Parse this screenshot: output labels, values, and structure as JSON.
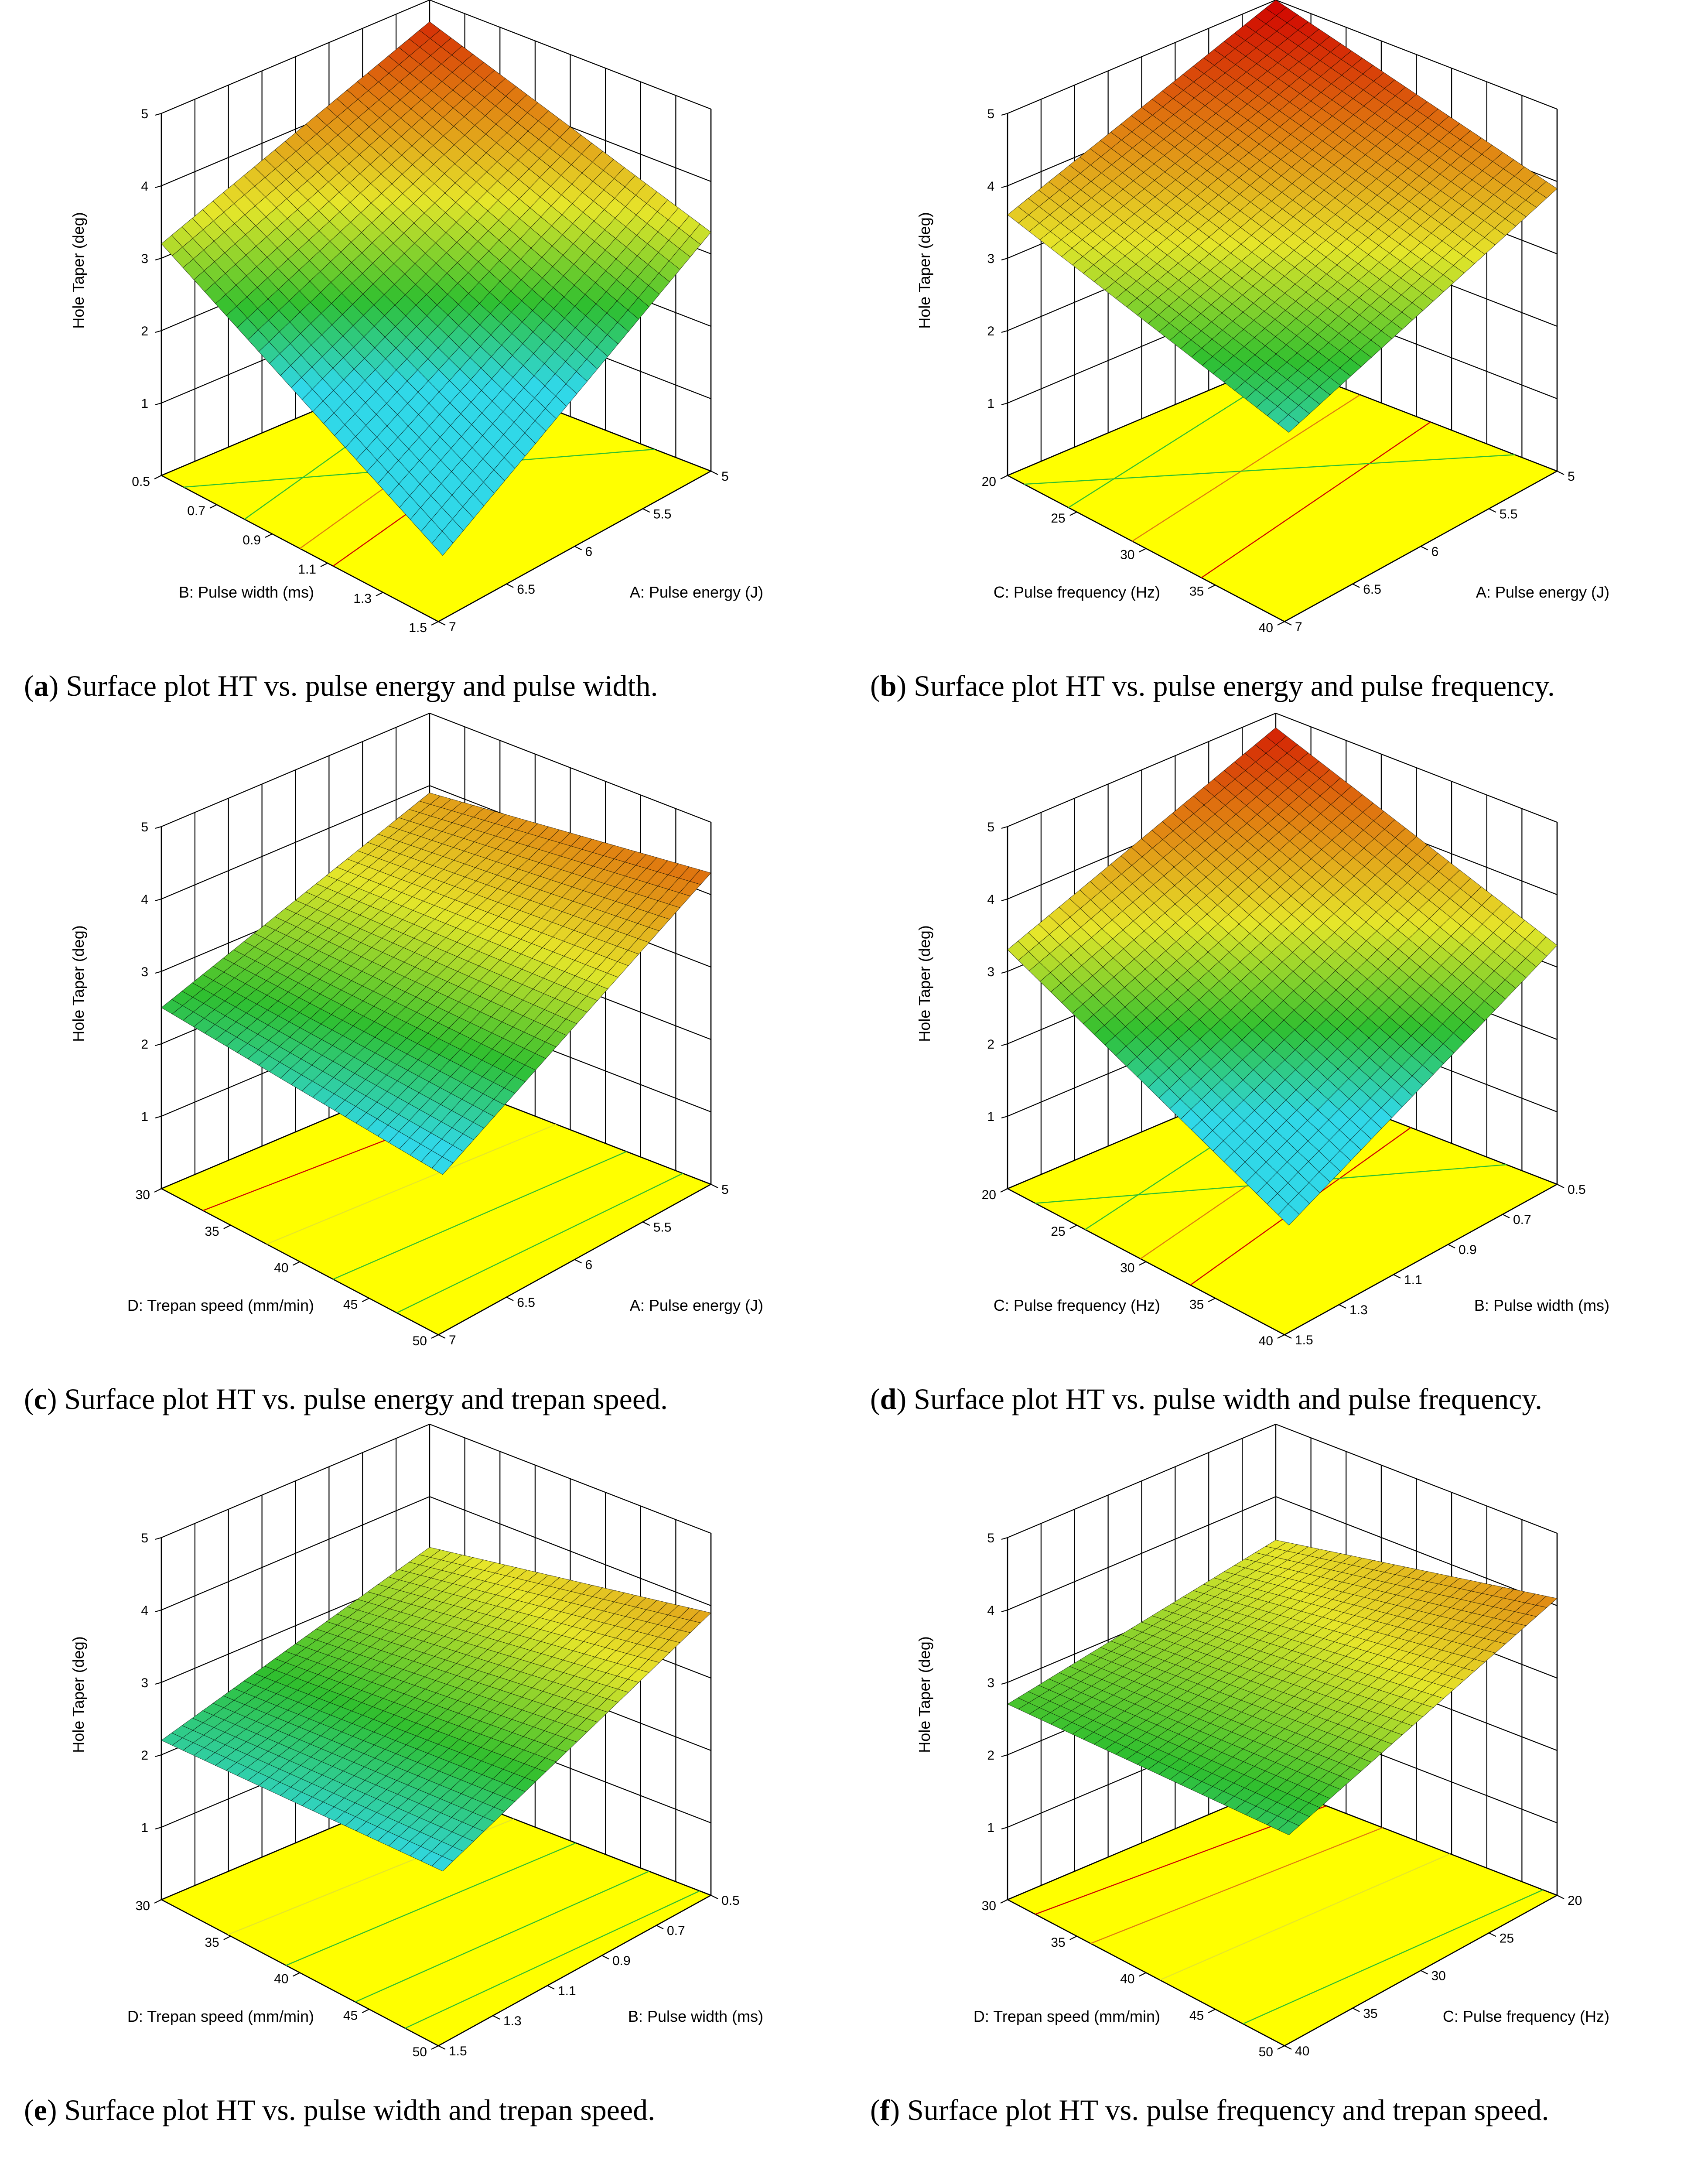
{
  "figure": {
    "panels_count": 6,
    "colors": {
      "base_plane": "#ffff00",
      "base_edge": "#000000",
      "grid": "#000000",
      "surface_low": "#30d8e8",
      "surface_mid": "#2fbf2f",
      "surface_high_a": "#e6e62a",
      "surface_high_b": "#e07a10",
      "surface_max": "#d00000",
      "mesh": "#000000"
    }
  },
  "chart_data": [
    {
      "id": "a",
      "type": "surface",
      "caption": {
        "letter": "a",
        "text": ") Surface plot HT vs. pulse energy and pulse width."
      },
      "zlabel": "Hole Taper (deg)",
      "zticks": [
        "5",
        "4",
        "3",
        "2",
        "1"
      ],
      "zlim": [
        0,
        5
      ],
      "xlabel": "B: Pulse width (ms)",
      "xticks": [
        "0.5",
        "0.7",
        "0.9",
        "1.1",
        "1.3",
        "1.5"
      ],
      "ylabel": "A: Pulse energy (J)",
      "yticks": [
        "5",
        "5.5",
        "6",
        "6.5",
        "7"
      ],
      "corners": {
        "top": 4.7,
        "left": 3.2,
        "right": 3.3,
        "bottom": 0.4
      },
      "contours": [
        {
          "a": 0.62,
          "b": 0.44,
          "color": "#d00000"
        },
        {
          "a": 0.5,
          "b": 0.3,
          "color": "#e07a10"
        },
        {
          "a": 0.3,
          "b": 0.08,
          "color": "#2fbf2f"
        },
        {
          "a": 0.08,
          "b": 0.8,
          "color": "#2fbf2f"
        }
      ]
    },
    {
      "id": "b",
      "type": "surface",
      "caption": {
        "letter": "b",
        "text": ") Surface plot HT vs. pulse energy and pulse frequency."
      },
      "zlabel": "Hole Taper (deg)",
      "zticks": [
        "5",
        "4",
        "3",
        "2",
        "1"
      ],
      "zlim": [
        0,
        5
      ],
      "xlabel": "C: Pulse frequency (Hz)",
      "xticks": [
        "20",
        "25",
        "30",
        "35",
        "40"
      ],
      "ylabel": "A: Pulse energy (J)",
      "yticks": [
        "5",
        "5.5",
        "6",
        "6.5",
        "7"
      ],
      "corners": {
        "top": 5.0,
        "left": 3.6,
        "right": 3.9,
        "bottom": 2.1
      },
      "contours": [
        {
          "a": 0.7,
          "b": 0.55,
          "color": "#d00000"
        },
        {
          "a": 0.45,
          "b": 0.3,
          "color": "#e07a10"
        },
        {
          "a": 0.22,
          "b": 0.05,
          "color": "#2fbf2f"
        },
        {
          "a": 0.06,
          "b": 0.85,
          "color": "#2fbf2f"
        }
      ]
    },
    {
      "id": "c",
      "type": "surface",
      "caption": {
        "letter": "c",
        "text": ") Surface plot HT vs. pulse energy and trepan speed."
      },
      "zlabel": "Hole Taper (deg)",
      "zticks": [
        "5",
        "4",
        "3",
        "2",
        "1"
      ],
      "zlim": [
        0,
        5
      ],
      "xlabel": "D: Trepan speed (mm/min)",
      "xticks": [
        "30",
        "35",
        "40",
        "45",
        "50"
      ],
      "ylabel": "A: Pulse energy (J)",
      "yticks": [
        "5",
        "5.5",
        "6",
        "6.5",
        "7"
      ],
      "corners": {
        "top": 3.9,
        "left": 2.5,
        "right": 4.3,
        "bottom": 1.7
      },
      "contours": [
        {
          "a": 0.85,
          "b": 0.9,
          "color": "#2fbf2f"
        },
        {
          "a": 0.62,
          "b": 0.7,
          "color": "#2fbf2f"
        },
        {
          "a": 0.38,
          "b": 0.45,
          "color": "#e6e62a"
        },
        {
          "a": 0.15,
          "b": 0.22,
          "color": "#d00000"
        }
      ]
    },
    {
      "id": "d",
      "type": "surface",
      "caption": {
        "letter": "d",
        "text": ") Surface plot HT vs. pulse width and pulse frequency."
      },
      "zlabel": "Hole Taper (deg)",
      "zticks": [
        "5",
        "4",
        "3",
        "2",
        "1"
      ],
      "zlim": [
        0,
        5
      ],
      "xlabel": "C: Pulse frequency (Hz)",
      "xticks": [
        "20",
        "25",
        "30",
        "35",
        "40"
      ],
      "ylabel": "B: Pulse width (ms)",
      "yticks": [
        "0.5",
        "0.7",
        "0.9",
        "1.1",
        "1.3",
        "1.5"
      ],
      "corners": {
        "top": 4.8,
        "left": 3.3,
        "right": 3.3,
        "bottom": 1.0
      },
      "contours": [
        {
          "a": 0.66,
          "b": 0.48,
          "color": "#d00000"
        },
        {
          "a": 0.48,
          "b": 0.3,
          "color": "#e07a10"
        },
        {
          "a": 0.28,
          "b": 0.1,
          "color": "#2fbf2f"
        },
        {
          "a": 0.1,
          "b": 0.82,
          "color": "#2fbf2f"
        }
      ]
    },
    {
      "id": "e",
      "type": "surface",
      "caption": {
        "letter": "e",
        "text": ") Surface plot HT vs. pulse width and trepan speed."
      },
      "zlabel": "Hole Taper (deg)",
      "zticks": [
        "5",
        "4",
        "3",
        "2",
        "1"
      ],
      "zlim": [
        0,
        5
      ],
      "xlabel": "D: Trepan speed (mm/min)",
      "xticks": [
        "30",
        "35",
        "40",
        "45",
        "50"
      ],
      "ylabel": "B: Pulse width (ms)",
      "yticks": [
        "0.5",
        "0.7",
        "0.9",
        "1.1",
        "1.3",
        "1.5"
      ],
      "corners": {
        "top": 3.3,
        "left": 2.2,
        "right": 3.9,
        "bottom": 1.9
      },
      "contours": [
        {
          "a": 0.88,
          "b": 0.96,
          "color": "#2fbf2f"
        },
        {
          "a": 0.7,
          "b": 0.78,
          "color": "#2fbf2f"
        },
        {
          "a": 0.45,
          "b": 0.52,
          "color": "#2fbf2f"
        },
        {
          "a": 0.24,
          "b": 0.3,
          "color": "#e6e62a"
        }
      ]
    },
    {
      "id": "f",
      "type": "surface",
      "caption": {
        "letter": "f",
        "text": ") Surface plot HT vs. pulse frequency and trepan speed."
      },
      "zlabel": "Hole Taper (deg)",
      "zticks": [
        "5",
        "4",
        "3",
        "2",
        "1"
      ],
      "zlim": [
        0,
        5
      ],
      "xlabel": "D: Trepan speed (mm/min)",
      "xticks": [
        "30",
        "35",
        "40",
        "45",
        "50"
      ],
      "ylabel": "C: Pulse frequency (Hz)",
      "yticks": [
        "20",
        "25",
        "30",
        "35",
        "40"
      ],
      "corners": {
        "top": 3.4,
        "left": 2.7,
        "right": 4.1,
        "bottom": 2.4
      },
      "contours": [
        {
          "a": 0.85,
          "b": 0.95,
          "color": "#2fbf2f"
        },
        {
          "a": 0.55,
          "b": 0.62,
          "color": "#e6e62a"
        },
        {
          "a": 0.3,
          "b": 0.38,
          "color": "#e07a10"
        },
        {
          "a": 0.1,
          "b": 0.18,
          "color": "#d00000"
        }
      ]
    }
  ]
}
